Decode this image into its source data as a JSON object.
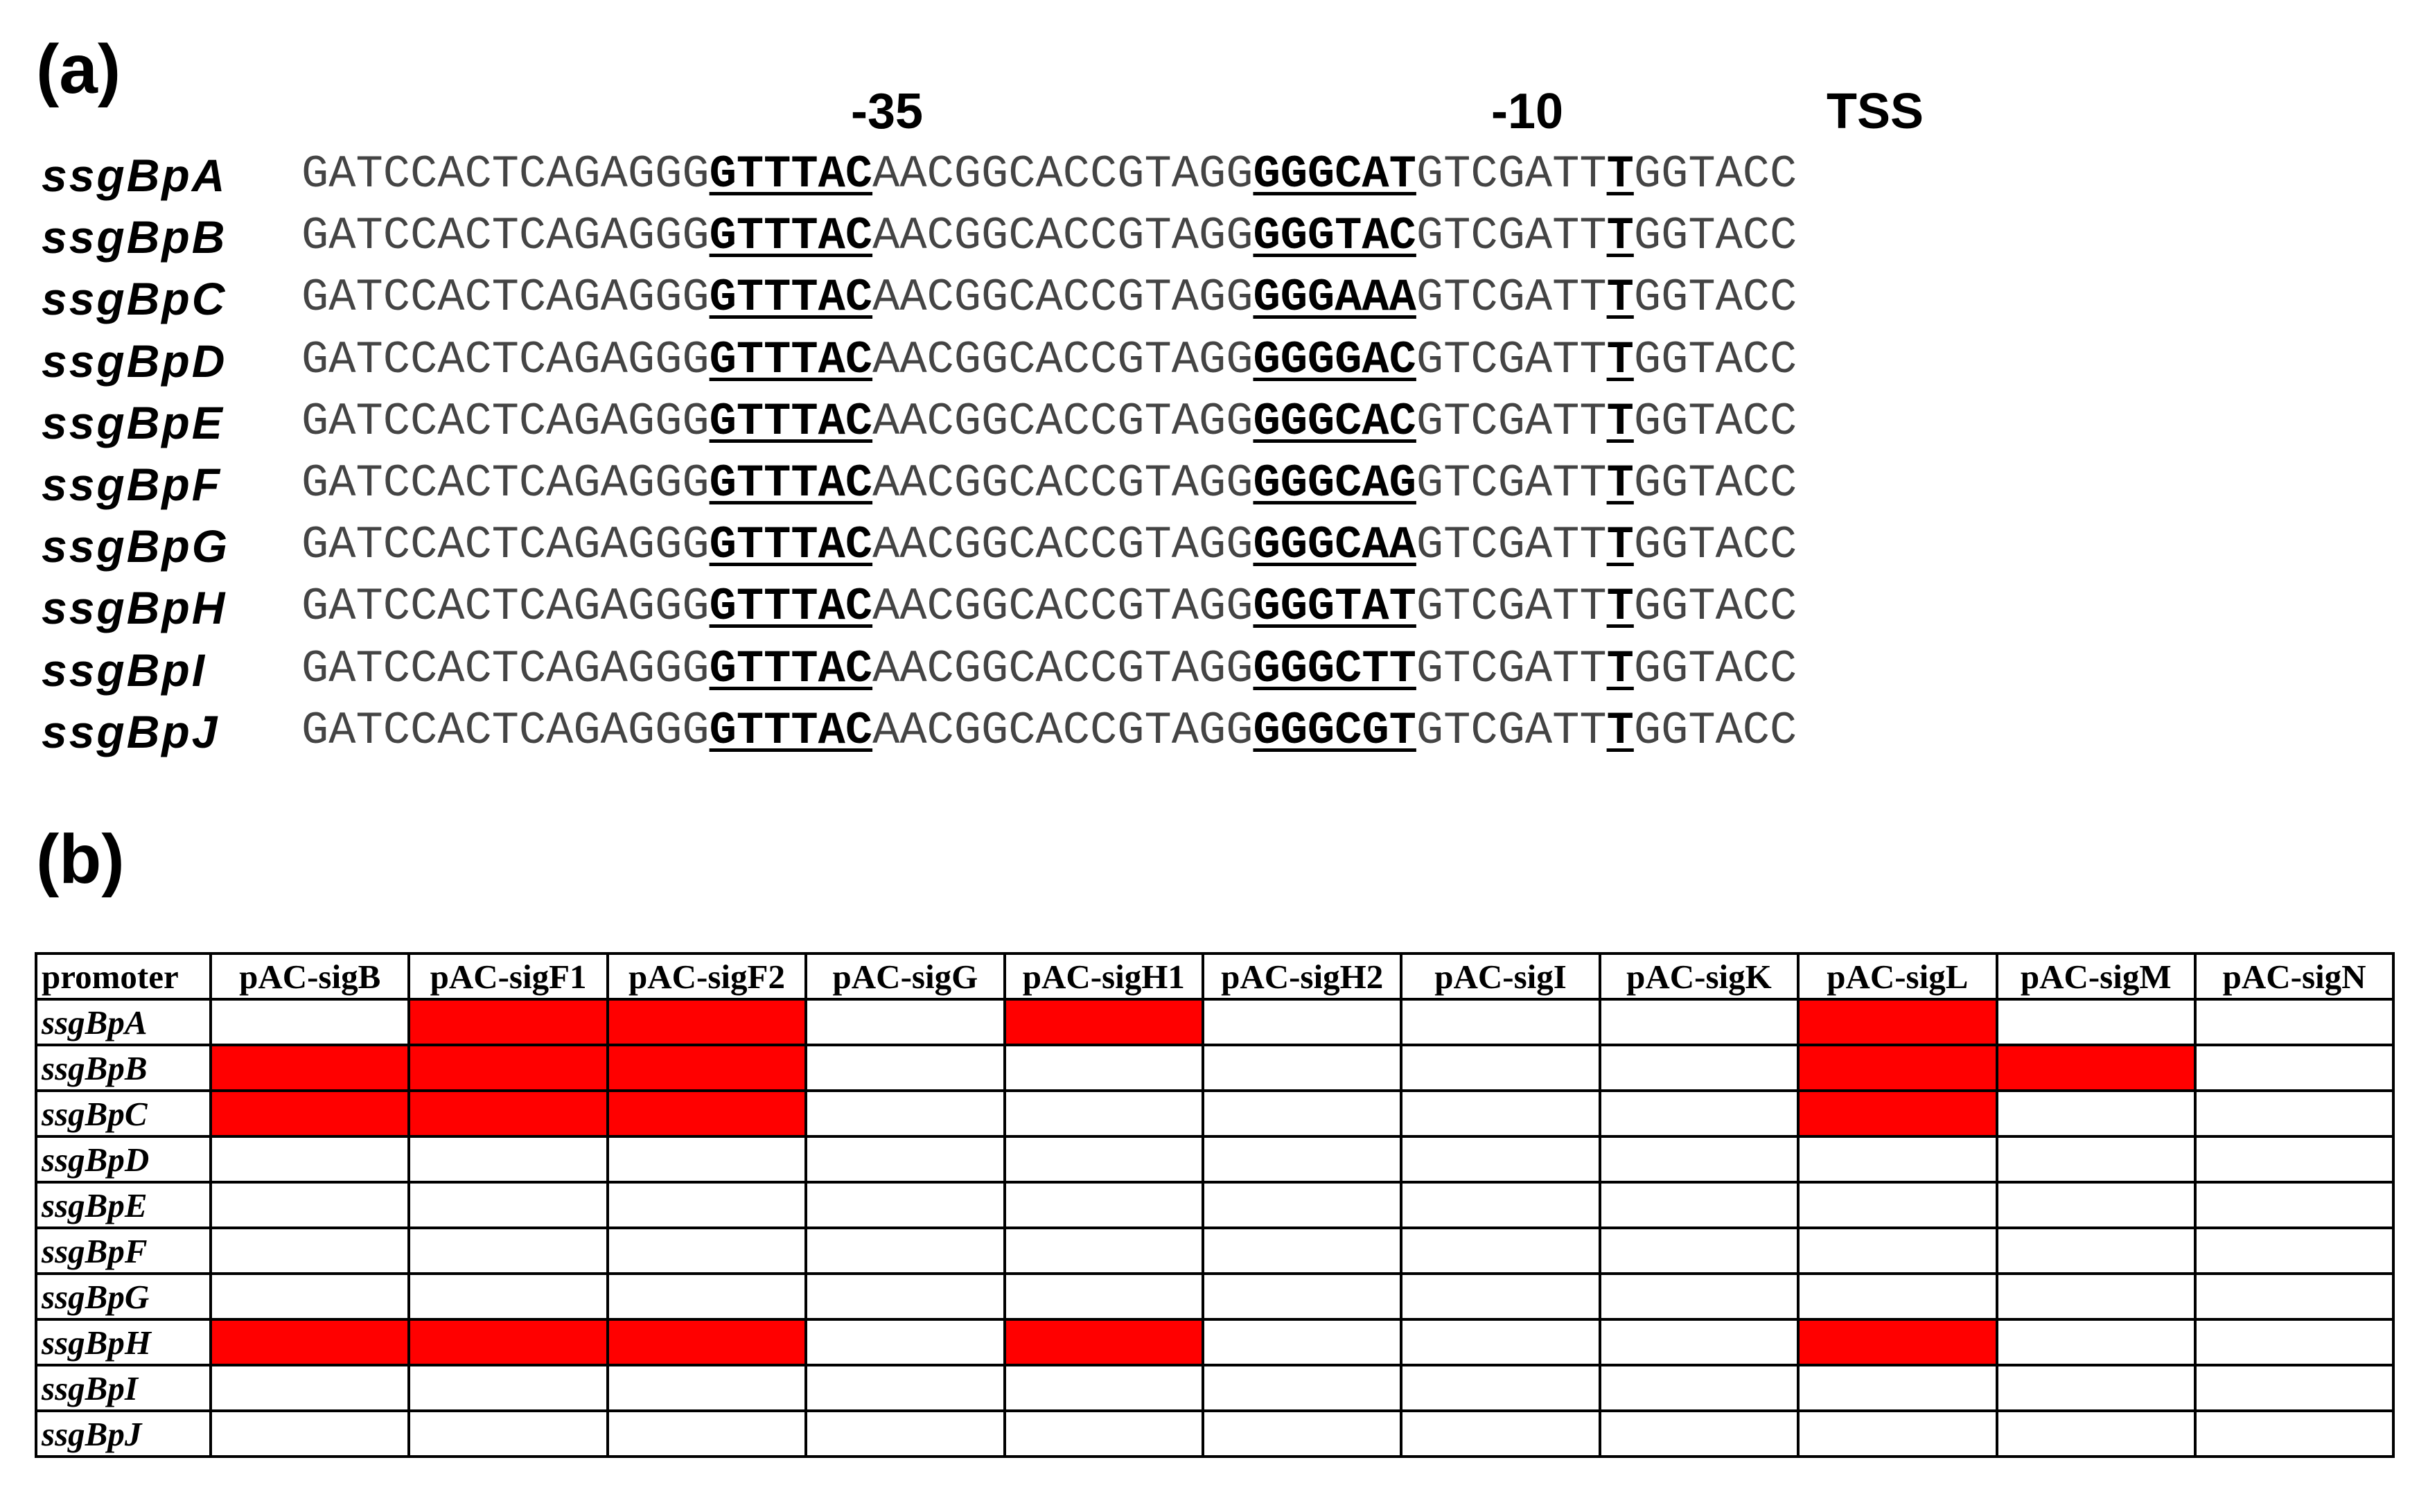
{
  "panel_a": {
    "label": "(a)",
    "markers": {
      "minus35": "-35",
      "minus10": "-10",
      "tss": "TSS"
    },
    "rows": [
      {
        "name": "ssgBpA",
        "prefix": "GATCCACTCAGAGGG",
        "box35": "GTTTAC",
        "spacer": "AACGGCACCGTAGG",
        "box10": "GGGCAT",
        "mid": "GTCGATT",
        "tss": "T",
        "suffix": "GGTACC"
      },
      {
        "name": "ssgBpB",
        "prefix": "GATCCACTCAGAGGG",
        "box35": "GTTTAC",
        "spacer": "AACGGCACCGTAGG",
        "box10": "GGGTAC",
        "mid": "GTCGATT",
        "tss": "T",
        "suffix": "GGTACC"
      },
      {
        "name": "ssgBpC",
        "prefix": "GATCCACTCAGAGGG",
        "box35": "GTTTAC",
        "spacer": "AACGGCACCGTAGG",
        "box10": "GGGAAA",
        "mid": "GTCGATT",
        "tss": "T",
        "suffix": "GGTACC"
      },
      {
        "name": "ssgBpD",
        "prefix": "GATCCACTCAGAGGG",
        "box35": "GTTTAC",
        "spacer": "AACGGCACCGTAGG",
        "box10": "GGGGAC",
        "mid": "GTCGATT",
        "tss": "T",
        "suffix": "GGTACC"
      },
      {
        "name": "ssgBpE",
        "prefix": "GATCCACTCAGAGGG",
        "box35": "GTTTAC",
        "spacer": "AACGGCACCGTAGG",
        "box10": "GGGCAC",
        "mid": "GTCGATT",
        "tss": "T",
        "suffix": "GGTACC"
      },
      {
        "name": "ssgBpF",
        "prefix": "GATCCACTCAGAGGG",
        "box35": "GTTTAC",
        "spacer": "AACGGCACCGTAGG",
        "box10": "GGGCAG",
        "mid": "GTCGATT",
        "tss": "T",
        "suffix": "GGTACC"
      },
      {
        "name": "ssgBpG",
        "prefix": "GATCCACTCAGAGGG",
        "box35": "GTTTAC",
        "spacer": "AACGGCACCGTAGG",
        "box10": "GGGCAA",
        "mid": "GTCGATT",
        "tss": "T",
        "suffix": "GGTACC"
      },
      {
        "name": "ssgBpH",
        "prefix": "GATCCACTCAGAGGG",
        "box35": "GTTTAC",
        "spacer": "AACGGCACCGTAGG",
        "box10": "GGGTAT",
        "mid": "GTCGATT",
        "tss": "T",
        "suffix": "GGTACC"
      },
      {
        "name": "ssgBpI",
        "prefix": "GATCCACTCAGAGGG",
        "box35": "GTTTAC",
        "spacer": "AACGGCACCGTAGG",
        "box10": "GGGCTT",
        "mid": "GTCGATT",
        "tss": "T",
        "suffix": "GGTACC"
      },
      {
        "name": "ssgBpJ",
        "prefix": "GATCCACTCAGAGGG",
        "box35": "GTTTAC",
        "spacer": "AACGGCACCGTAGG",
        "box10": "GGGCGT",
        "mid": "GTCGATT",
        "tss": "T",
        "suffix": "GGTACC"
      }
    ]
  },
  "panel_b": {
    "label": "(b)",
    "corner_header": "promoter",
    "columns": [
      "pAC-sigB",
      "pAC-sigF1",
      "pAC-sigF2",
      "pAC-sigG",
      "pAC-sigH1",
      "pAC-sigH2",
      "pAC-sigI",
      "pAC-sigK",
      "pAC-sigL",
      "pAC-sigM",
      "pAC-sigN"
    ],
    "highlight_color": "#ff0000",
    "rows": [
      {
        "name": "ssgBpA",
        "active": [
          0,
          1,
          1,
          0,
          1,
          0,
          0,
          0,
          1,
          0,
          0
        ]
      },
      {
        "name": "ssgBpB",
        "active": [
          1,
          1,
          1,
          0,
          0,
          0,
          0,
          0,
          1,
          1,
          0
        ]
      },
      {
        "name": "ssgBpC",
        "active": [
          1,
          1,
          1,
          0,
          0,
          0,
          0,
          0,
          1,
          0,
          0
        ]
      },
      {
        "name": "ssgBpD",
        "active": [
          0,
          0,
          0,
          0,
          0,
          0,
          0,
          0,
          0,
          0,
          0
        ]
      },
      {
        "name": "ssgBpE",
        "active": [
          0,
          0,
          0,
          0,
          0,
          0,
          0,
          0,
          0,
          0,
          0
        ]
      },
      {
        "name": "ssgBpF",
        "active": [
          0,
          0,
          0,
          0,
          0,
          0,
          0,
          0,
          0,
          0,
          0
        ]
      },
      {
        "name": "ssgBpG",
        "active": [
          0,
          0,
          0,
          0,
          0,
          0,
          0,
          0,
          0,
          0,
          0
        ]
      },
      {
        "name": "ssgBpH",
        "active": [
          1,
          1,
          1,
          0,
          1,
          0,
          0,
          0,
          1,
          0,
          0
        ]
      },
      {
        "name": "ssgBpI",
        "active": [
          0,
          0,
          0,
          0,
          0,
          0,
          0,
          0,
          0,
          0,
          0
        ]
      },
      {
        "name": "ssgBpJ",
        "active": [
          0,
          0,
          0,
          0,
          0,
          0,
          0,
          0,
          0,
          0,
          0
        ]
      }
    ]
  }
}
